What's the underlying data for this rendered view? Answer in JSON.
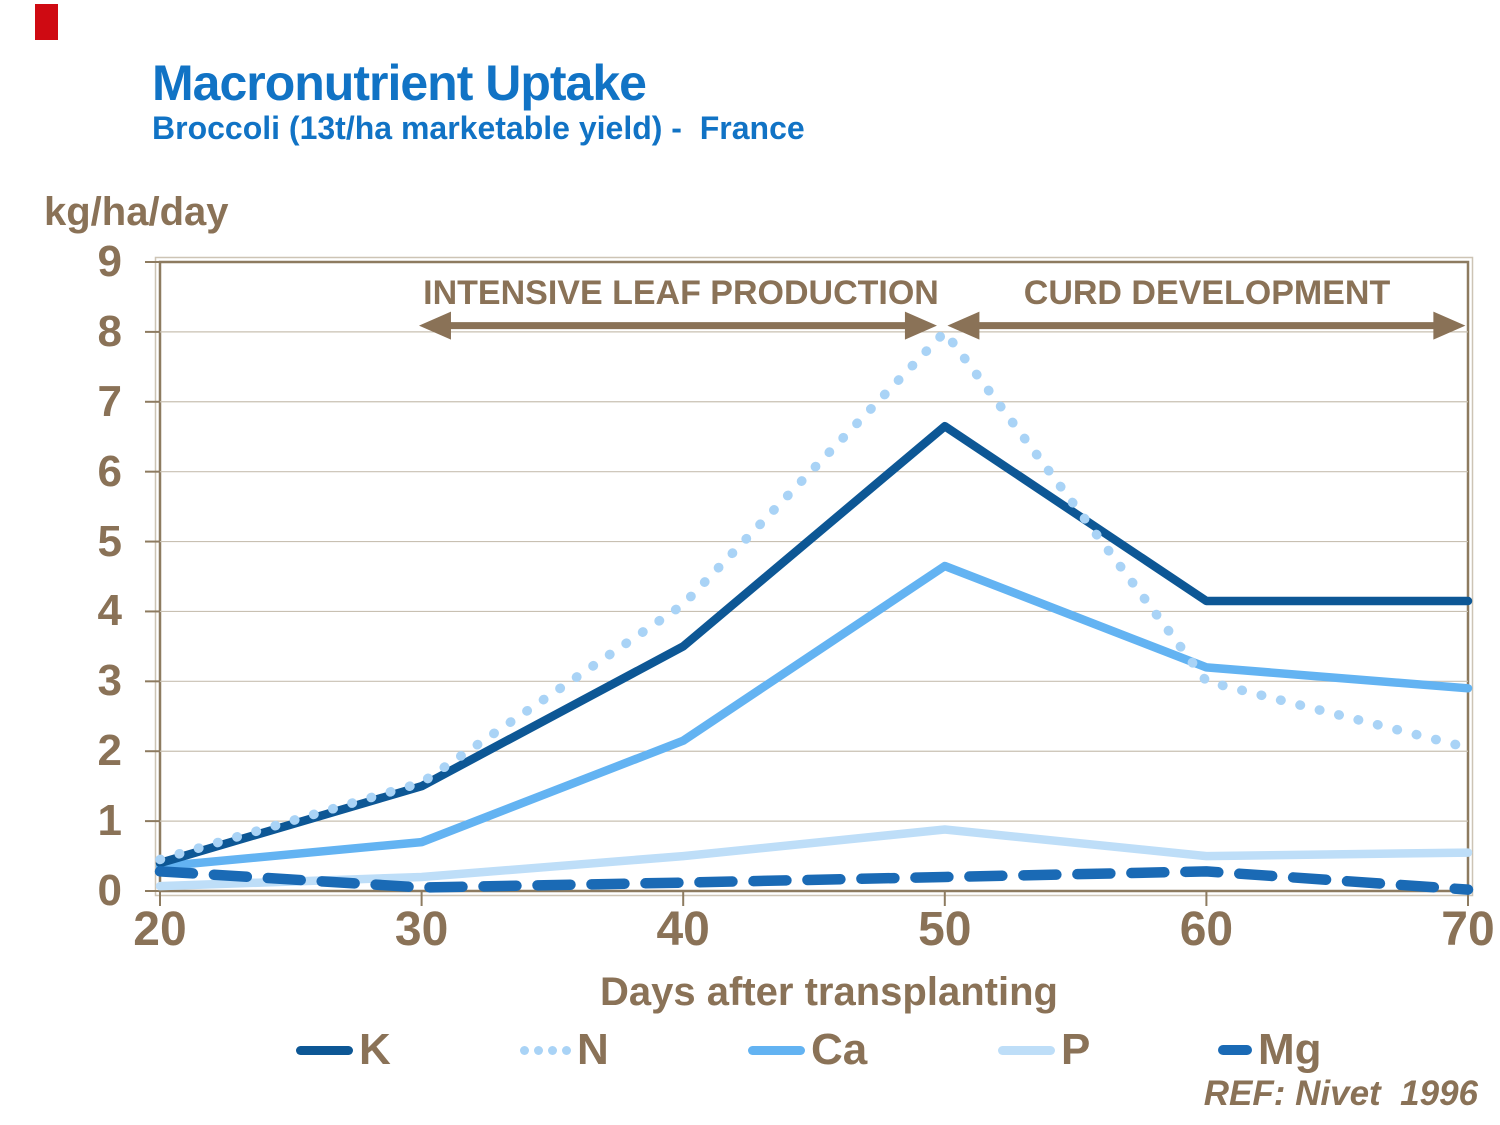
{
  "slide": {
    "title": "Macronutrient Uptake",
    "subtitle": "Broccoli (13t/ha marketable yield) -  France",
    "reference": "REF: Nivet  1996"
  },
  "colors": {
    "title_blue": "#1173c5",
    "text_brown": "#8a7257",
    "accent_red": "#cf0a12",
    "grid": "#c8c0b2",
    "frame": "#8d7b60",
    "frame_shadow": "#cdc4b5"
  },
  "chart_data": {
    "type": "line",
    "title": "Macronutrient Uptake",
    "subtitle": "Broccoli (13t/ha marketable yield) - France",
    "unit_label": "kg/ha/day",
    "xlabel": "Days after transplanting",
    "x": [
      20,
      30,
      40,
      50,
      60,
      70
    ],
    "xticks": [
      20,
      30,
      40,
      50,
      60,
      70
    ],
    "yticks": [
      0,
      1,
      2,
      3,
      4,
      5,
      6,
      7,
      8,
      9
    ],
    "xlim": [
      20,
      70
    ],
    "ylim": [
      0,
      9
    ],
    "grid": "horizontal",
    "legend_position": "bottom",
    "series": [
      {
        "name": "K",
        "color": "#0d5795",
        "style": "solid",
        "values": [
          0.4,
          1.5,
          3.5,
          6.65,
          4.15,
          4.15
        ]
      },
      {
        "name": "N",
        "color": "#a9d3f6",
        "style": "dotted",
        "values": [
          0.45,
          1.55,
          4.1,
          8.0,
          3.0,
          2.05
        ]
      },
      {
        "name": "Ca",
        "color": "#63b3f2",
        "style": "solid",
        "values": [
          0.35,
          0.7,
          2.15,
          4.65,
          3.2,
          2.9
        ]
      },
      {
        "name": "P",
        "color": "#bedef8",
        "style": "solid",
        "values": [
          0.07,
          0.2,
          0.5,
          0.88,
          0.5,
          0.55
        ]
      },
      {
        "name": "Mg",
        "color": "#1a6ab5",
        "style": "dashed",
        "values": [
          0.28,
          0.05,
          0.12,
          0.2,
          0.28,
          0.02
        ]
      }
    ],
    "annotations": [
      {
        "label": "INTENSIVE LEAF PRODUCTION",
        "x_start": 29.9,
        "x_end": 49.7,
        "y": 8.09
      },
      {
        "label": "CURD DEVELOPMENT",
        "x_start": 50.1,
        "x_end": 69.9,
        "y": 8.09
      }
    ]
  }
}
